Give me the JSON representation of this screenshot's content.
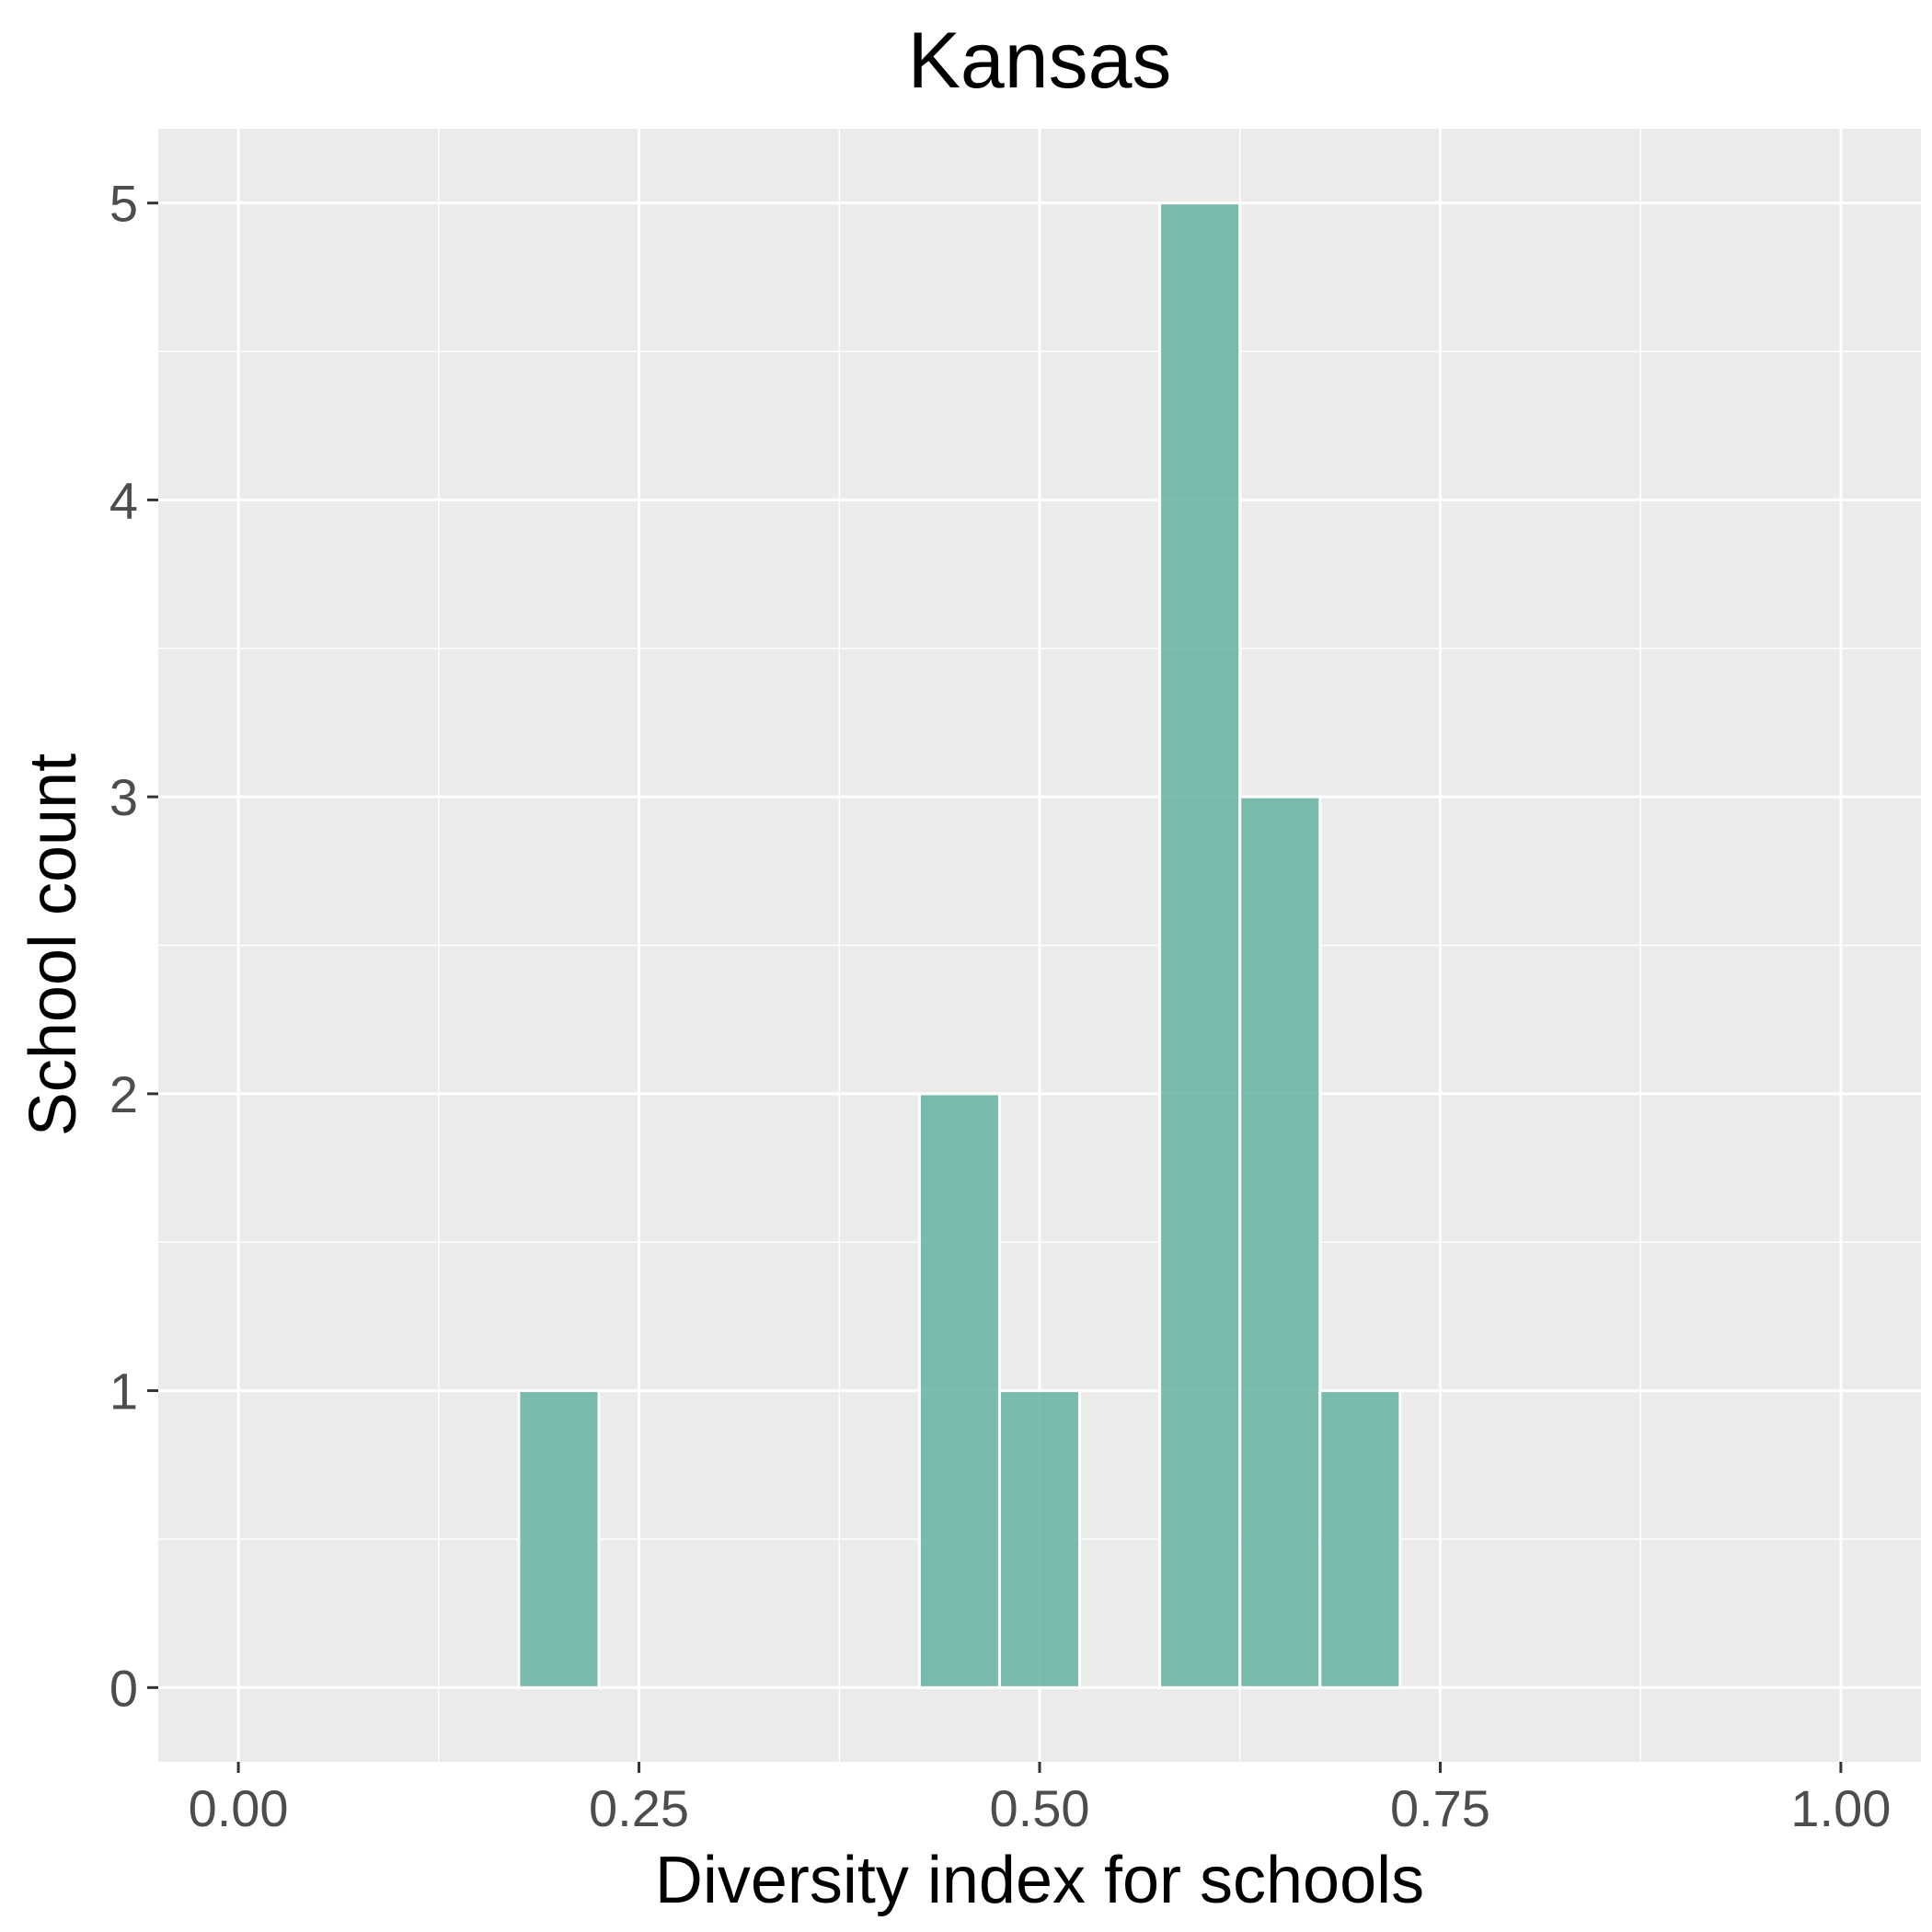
{
  "chart_data": {
    "type": "bar",
    "title": "Kansas",
    "xlabel": "Diversity index for schools",
    "ylabel": "School count",
    "xlim": [
      -0.05,
      1.05
    ],
    "ylim": [
      -0.25,
      5.25
    ],
    "x_ticks": [
      0.0,
      0.25,
      0.5,
      0.75,
      1.0
    ],
    "x_tick_labels": [
      "0.00",
      "0.25",
      "0.50",
      "0.75",
      "1.00"
    ],
    "y_ticks": [
      0,
      1,
      2,
      3,
      4,
      5
    ],
    "y_tick_labels": [
      "0",
      "1",
      "2",
      "3",
      "4",
      "5"
    ],
    "bin_width": 0.05,
    "bins": [
      {
        "x": 0.0,
        "count": 0
      },
      {
        "x": 0.05,
        "count": 0
      },
      {
        "x": 0.1,
        "count": 0
      },
      {
        "x": 0.15,
        "count": 0
      },
      {
        "x": 0.2,
        "count": 1
      },
      {
        "x": 0.25,
        "count": 0
      },
      {
        "x": 0.3,
        "count": 0
      },
      {
        "x": 0.35,
        "count": 0
      },
      {
        "x": 0.4,
        "count": 0
      },
      {
        "x": 0.45,
        "count": 2
      },
      {
        "x": 0.5,
        "count": 1
      },
      {
        "x": 0.55,
        "count": 0
      },
      {
        "x": 0.6,
        "count": 5
      },
      {
        "x": 0.65,
        "count": 3
      },
      {
        "x": 0.7,
        "count": 1
      },
      {
        "x": 0.75,
        "count": 0
      },
      {
        "x": 0.8,
        "count": 0
      },
      {
        "x": 0.85,
        "count": 0
      },
      {
        "x": 0.9,
        "count": 0
      },
      {
        "x": 0.95,
        "count": 0
      }
    ],
    "grid": true,
    "colors": {
      "bar_fill": "#66b2a2",
      "bar_stroke": "#ffffff",
      "panel": "#ebebeb",
      "grid": "#ffffff"
    }
  }
}
